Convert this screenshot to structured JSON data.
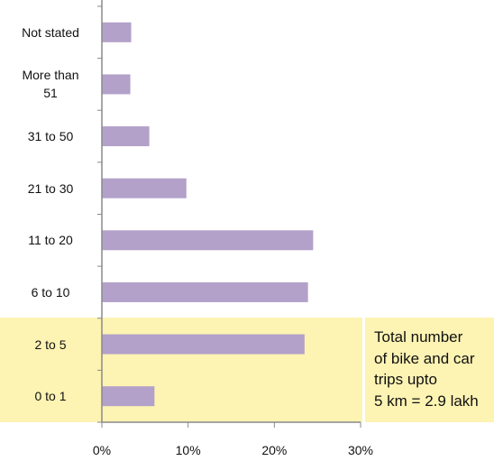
{
  "chart_data": {
    "type": "bar",
    "orientation": "horizontal",
    "categories": [
      "Not stated",
      "More than 51",
      "31 to 50",
      "21 to 30",
      "11 to 20",
      "6 to 10",
      "2 to 5",
      "0 to 1"
    ],
    "category_lines": [
      [
        "Not stated"
      ],
      [
        "More than",
        "51"
      ],
      [
        "31 to 50"
      ],
      [
        "21 to 30"
      ],
      [
        "11 to 20"
      ],
      [
        "6 to 10"
      ],
      [
        "2 to 5"
      ],
      [
        "0 to 1"
      ]
    ],
    "values": [
      3.4,
      3.3,
      5.5,
      9.8,
      24.5,
      23.9,
      23.5,
      6.1
    ],
    "xlim": [
      0,
      30
    ],
    "xticks": [
      0,
      10,
      20,
      30
    ],
    "xtick_labels": [
      "0%",
      "10%",
      "20%",
      "30%"
    ],
    "highlighted_categories": [
      "2 to 5",
      "0 to 1"
    ],
    "annotation_lines": [
      "Total number",
      "of bike and car",
      "trips upto",
      "5 km = 2.9 lakh"
    ],
    "title": "",
    "xlabel": "",
    "ylabel": "",
    "grid": false,
    "legend": false
  },
  "colors": {
    "bar": "#b3a1c9",
    "highlight": "#fdf3b3",
    "axis": "#8a8a8a"
  }
}
